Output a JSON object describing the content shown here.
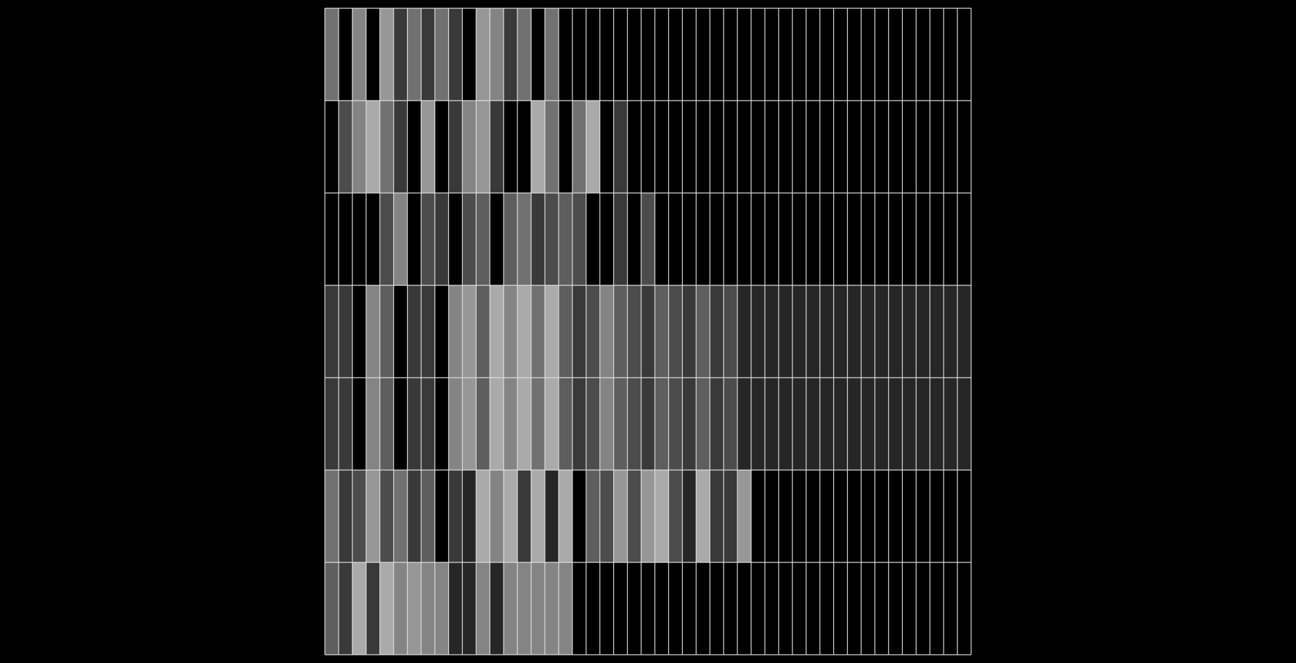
{
  "chart_data": {
    "type": "heatmap",
    "rows": 7,
    "cols": 47,
    "values": [
      [
        6,
        0,
        7,
        0,
        8,
        3,
        6,
        3,
        6,
        3,
        0,
        8,
        7,
        3,
        6,
        0,
        6,
        0,
        0,
        0,
        0,
        0,
        0,
        0,
        0,
        0,
        0,
        0,
        0,
        0,
        0,
        0,
        0,
        0,
        0,
        0,
        0,
        0,
        0,
        0,
        0,
        0,
        0,
        0,
        0,
        0,
        0
      ],
      [
        0,
        4,
        7,
        9,
        6,
        3,
        0,
        8,
        0,
        3,
        7,
        8,
        3,
        0,
        0,
        9,
        6,
        0,
        6,
        9,
        0,
        3,
        0,
        0,
        0,
        0,
        0,
        0,
        0,
        0,
        0,
        0,
        0,
        0,
        0,
        0,
        0,
        0,
        0,
        0,
        0,
        0,
        0,
        0,
        0,
        0,
        0
      ],
      [
        0,
        0,
        0,
        0,
        4,
        7,
        0,
        4,
        3,
        0,
        4,
        5,
        0,
        5,
        6,
        3,
        4,
        5,
        4,
        0,
        0,
        3,
        0,
        4,
        0,
        0,
        0,
        0,
        0,
        0,
        0,
        0,
        0,
        0,
        0,
        0,
        0,
        0,
        0,
        0,
        0,
        0,
        0,
        0,
        0,
        0,
        0
      ],
      [
        3,
        3,
        0,
        7,
        5,
        0,
        3,
        3,
        0,
        7,
        8,
        5,
        9,
        7,
        9,
        6,
        9,
        5,
        3,
        4,
        7,
        5,
        4,
        3,
        5,
        4,
        3,
        5,
        3,
        4,
        2,
        2,
        2,
        2,
        2,
        2,
        2,
        2,
        2,
        2,
        2,
        2,
        2,
        2,
        2,
        2,
        2
      ],
      [
        3,
        3,
        0,
        7,
        5,
        0,
        3,
        3,
        0,
        7,
        8,
        5,
        9,
        7,
        9,
        6,
        9,
        5,
        3,
        4,
        7,
        5,
        4,
        3,
        5,
        4,
        3,
        5,
        3,
        4,
        2,
        2,
        2,
        2,
        2,
        2,
        2,
        2,
        2,
        2,
        2,
        2,
        2,
        2,
        2,
        2,
        2
      ],
      [
        6,
        3,
        4,
        8,
        4,
        6,
        3,
        5,
        0,
        3,
        2,
        9,
        7,
        9,
        3,
        9,
        2,
        9,
        0,
        5,
        4,
        8,
        4,
        8,
        9,
        4,
        2,
        9,
        3,
        3,
        8,
        0,
        0,
        0,
        0,
        0,
        0,
        0,
        0,
        0,
        0,
        0,
        0,
        0,
        0,
        0,
        0
      ],
      [
        5,
        3,
        9,
        3,
        9,
        7,
        8,
        7,
        7,
        2,
        2,
        7,
        2,
        7,
        7,
        7,
        7,
        7,
        0,
        0,
        0,
        0,
        0,
        0,
        0,
        0,
        0,
        0,
        0,
        0,
        0,
        0,
        0,
        0,
        0,
        0,
        0,
        0,
        0,
        0,
        0,
        0,
        0,
        0,
        0,
        0,
        0
      ]
    ],
    "value_range": [
      0,
      9
    ],
    "colormap": "grayscale",
    "grid": true,
    "grid_color": "#DDDDDD",
    "background_color": "#000000",
    "title": "",
    "xlabel": "",
    "ylabel": ""
  }
}
